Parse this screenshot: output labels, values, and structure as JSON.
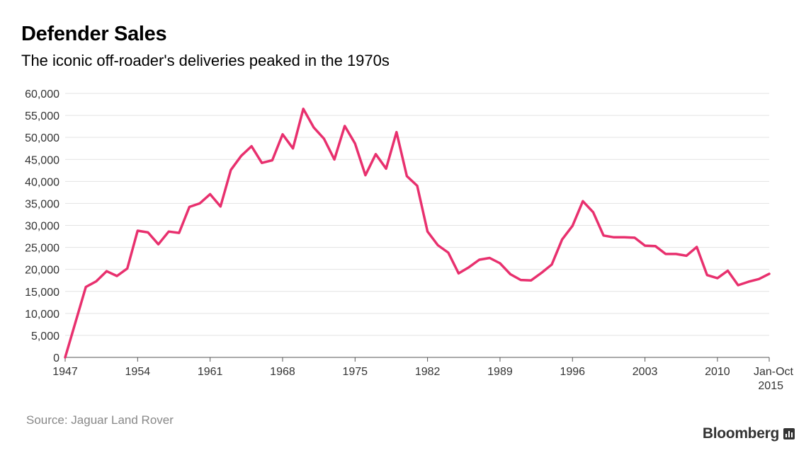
{
  "header": {
    "title": "Defender Sales",
    "subtitle": "The iconic off-roader's deliveries peaked in the 1970s"
  },
  "footer": {
    "source": "Source: Jaguar Land Rover",
    "brand": "Bloomberg",
    "brand_icon": "bar-chart-icon"
  },
  "colors": {
    "line": "#e8306e",
    "grid": "#e3e3e3",
    "axis": "#555555"
  },
  "chart_data": {
    "type": "line",
    "title": "Defender Sales",
    "subtitle": "The iconic off-roader's deliveries peaked in the 1970s",
    "xlabel": "",
    "ylabel": "",
    "ylim": [
      0,
      60000
    ],
    "xlim": [
      1947,
      2015
    ],
    "grid": true,
    "legend": "none",
    "y_ticks": [
      {
        "value": 0,
        "label": "0"
      },
      {
        "value": 5000,
        "label": "5,000"
      },
      {
        "value": 10000,
        "label": "10,000"
      },
      {
        "value": 15000,
        "label": "15,000"
      },
      {
        "value": 20000,
        "label": "20,000"
      },
      {
        "value": 25000,
        "label": "25,000"
      },
      {
        "value": 30000,
        "label": "30,000"
      },
      {
        "value": 35000,
        "label": "35,000"
      },
      {
        "value": 40000,
        "label": "40,000"
      },
      {
        "value": 45000,
        "label": "45,000"
      },
      {
        "value": 50000,
        "label": "50,000"
      },
      {
        "value": 55000,
        "label": "55,000"
      },
      {
        "value": 60000,
        "label": "60,000"
      }
    ],
    "x_ticks": [
      {
        "value": 1947,
        "label": "1947"
      },
      {
        "value": 1954,
        "label": "1954"
      },
      {
        "value": 1961,
        "label": "1961"
      },
      {
        "value": 1968,
        "label": "1968"
      },
      {
        "value": 1975,
        "label": "1975"
      },
      {
        "value": 1982,
        "label": "1982"
      },
      {
        "value": 1989,
        "label": "1989"
      },
      {
        "value": 1996,
        "label": "1996"
      },
      {
        "value": 2003,
        "label": "2003"
      },
      {
        "value": 2010,
        "label": "2010"
      },
      {
        "value": 2015,
        "label": "Jan-Oct",
        "label2": "2015"
      }
    ],
    "series": [
      {
        "x": [
          1947,
          1948,
          1949,
          1950,
          1951,
          1952,
          1953,
          1954,
          1955,
          1956,
          1957,
          1958,
          1959,
          1960,
          1961,
          1962,
          1963,
          1964,
          1965,
          1966,
          1967,
          1968,
          1969,
          1970,
          1971,
          1972,
          1973,
          1974,
          1975,
          1976,
          1977,
          1978,
          1979,
          1980,
          1981,
          1982,
          1983,
          1984,
          1985,
          1986,
          1987,
          1988,
          1989,
          1990,
          1991,
          1992,
          1993,
          1994,
          1995,
          1996,
          1997,
          1998,
          1999,
          2000,
          2001,
          2002,
          2003,
          2004,
          2005,
          2006,
          2007,
          2008,
          2009,
          2010,
          2011,
          2012,
          2013,
          2014,
          2015
        ],
        "values": [
          0,
          8000,
          16000,
          17300,
          19600,
          18500,
          20200,
          28800,
          28400,
          25700,
          28600,
          28300,
          34200,
          35000,
          37100,
          34300,
          42600,
          45800,
          48000,
          44200,
          44800,
          50700,
          47500,
          56500,
          52300,
          49700,
          45000,
          52600,
          48600,
          41400,
          46200,
          42900,
          51200,
          41200,
          39000,
          28600,
          25500,
          23800,
          19100,
          20500,
          22200,
          22600,
          21400,
          18900,
          17600,
          17500,
          19200,
          21100,
          26800,
          29900,
          35500,
          33000,
          27700,
          27300,
          27300,
          27200,
          25400,
          25300,
          23500,
          23500,
          23100,
          25100,
          18700,
          18000,
          19700,
          16400,
          17200,
          17800,
          19000
        ]
      }
    ]
  }
}
